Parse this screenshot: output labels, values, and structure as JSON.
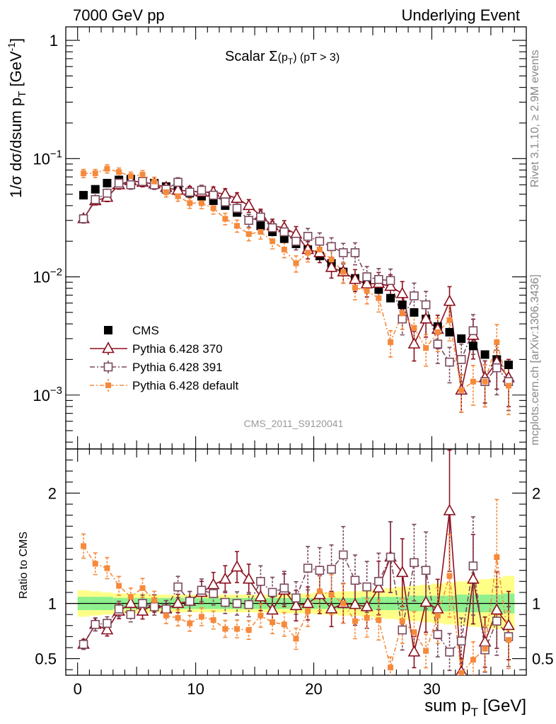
{
  "header": {
    "left": "7000 GeV pp",
    "right": "Underlying Event"
  },
  "side_text": {
    "top": "Rivet 3.1.10, ≥ 2.9M events",
    "bottom": "mcplots.cern.ch [arXiv:1306.3436]"
  },
  "watermark": "CMS_2011_S9120041",
  "colors": {
    "cms": "#000000",
    "p370": "#8b0f1e",
    "p391": "#7a4a5e",
    "pdef": "#f58a3c",
    "band_inner": "#8ef08e",
    "band_outer": "#ffff88"
  },
  "chart_data": [
    {
      "type": "scatter",
      "title_prefix": "Scalar ",
      "title_symbol": "Σ",
      "title_arg": "(p",
      "title_arg_sub": "T",
      "title_arg_close": ")",
      "title_cut": " (pT >  3)",
      "ylabel": "1/σ dσ/dsum p",
      "ylabel_sub": "T",
      "ylabel_unit": " [GeV",
      "ylabel_unit_sup": "-1",
      "ylabel_close": "]",
      "yscale": "log",
      "ylim": [
        0.00035,
        1.3
      ],
      "xlim": [
        -1,
        38
      ],
      "y_ticks": [
        {
          "value": 1,
          "base": "1",
          "exp": ""
        },
        {
          "value": 0.1,
          "base": "10",
          "exp": "−1"
        },
        {
          "value": 0.01,
          "base": "10",
          "exp": "−2"
        },
        {
          "value": 0.001,
          "base": "10",
          "exp": "−3"
        }
      ],
      "x": [
        0.5,
        1.5,
        2.5,
        3.5,
        4.5,
        5.5,
        6.5,
        7.5,
        8.5,
        9.5,
        10.5,
        11.5,
        12.5,
        13.5,
        14.5,
        15.5,
        16.5,
        17.5,
        18.5,
        19.5,
        20.5,
        21.5,
        22.5,
        23.5,
        24.5,
        25.5,
        26.5,
        27.5,
        28.5,
        29.5,
        30.5,
        31.5,
        32.5,
        33.5,
        34.5,
        35.5,
        36.5
      ],
      "legend": {
        "position": "bottom-left"
      },
      "series": [
        {
          "name": "CMS",
          "values": [
            0.049,
            0.055,
            0.062,
            0.066,
            0.067,
            0.064,
            0.062,
            0.058,
            0.055,
            0.051,
            0.048,
            0.044,
            0.04,
            0.035,
            0.03,
            0.027,
            0.024,
            0.021,
            0.019,
            0.017,
            0.015,
            0.013,
            0.011,
            0.0097,
            0.0087,
            0.0078,
            0.0066,
            0.0058,
            0.005,
            0.0044,
            0.0038,
            0.0034,
            0.003,
            0.0026,
            0.0022,
            0.002,
            0.0018
          ]
        },
        {
          "name": "Pythia 6.428 370",
          "values": [
            0.031,
            0.044,
            0.047,
            0.06,
            0.065,
            0.063,
            0.061,
            0.057,
            0.054,
            0.053,
            0.052,
            0.052,
            0.05,
            0.046,
            0.04,
            0.033,
            0.027,
            0.026,
            0.023,
            0.017,
            0.016,
            0.012,
            0.011,
            0.0095,
            0.0087,
            0.0088,
            0.0083,
            0.0072,
            0.0027,
            0.0044,
            0.0036,
            0.0062,
            0.0011,
            0.0032,
            0.0014,
            0.0019,
            0.0014
          ]
        },
        {
          "name": "Pythia 6.428 391",
          "values": [
            0.031,
            0.045,
            0.051,
            0.062,
            0.06,
            0.064,
            0.06,
            0.055,
            0.063,
            0.052,
            0.054,
            0.049,
            0.043,
            0.038,
            0.03,
            0.032,
            0.026,
            0.024,
            0.02,
            0.022,
            0.02,
            0.018,
            0.016,
            0.016,
            0.01,
            0.0095,
            0.0093,
            0.0044,
            0.0069,
            0.0058,
            0.0027,
            0.0019,
            0.002,
            0.0035,
            0.0013,
            0.0017,
            0.0013
          ]
        },
        {
          "name": "Pythia 6.428 default",
          "values": [
            0.075,
            0.075,
            0.082,
            0.077,
            0.071,
            0.073,
            0.064,
            0.052,
            0.048,
            0.042,
            0.042,
            0.038,
            0.031,
            0.027,
            0.023,
            0.024,
            0.02,
            0.017,
            0.013,
            0.016,
            0.017,
            0.014,
            0.011,
            0.0081,
            0.0076,
            0.0066,
            0.0028,
            0.0049,
            0.0037,
            0.0025,
            0.0034,
            0.0043,
            0.0011,
            0.0013,
            0.0013,
            0.0028,
            0.0012
          ]
        }
      ]
    },
    {
      "type": "scatter",
      "ylabel": "Ratio to CMS",
      "xlabel": "sum p",
      "xlabel_sub": "T",
      "xlabel_unit": " [GeV]",
      "ylim": [
        0.35,
        2.4
      ],
      "xlim": [
        -1,
        38
      ],
      "y_ticks": [
        0.5,
        1,
        2
      ],
      "x_ticks": [
        0,
        10,
        20,
        30
      ],
      "reference_line": 1,
      "x": [
        0.5,
        1.5,
        2.5,
        3.5,
        4.5,
        5.5,
        6.5,
        7.5,
        8.5,
        9.5,
        10.5,
        11.5,
        12.5,
        13.5,
        14.5,
        15.5,
        16.5,
        17.5,
        18.5,
        19.5,
        20.5,
        21.5,
        22.5,
        23.5,
        24.5,
        25.5,
        26.5,
        27.5,
        28.5,
        29.5,
        30.5,
        31.5,
        32.5,
        33.5,
        34.5,
        35.5,
        36.5
      ],
      "band_inner": [
        0.06,
        0.06,
        0.06,
        0.05,
        0.05,
        0.05,
        0.05,
        0.05,
        0.05,
        0.05,
        0.05,
        0.05,
        0.05,
        0.05,
        0.05,
        0.05,
        0.05,
        0.05,
        0.05,
        0.05,
        0.05,
        0.05,
        0.05,
        0.05,
        0.06,
        0.06,
        0.06,
        0.06,
        0.07,
        0.07,
        0.07,
        0.07,
        0.08,
        0.08,
        0.08,
        0.08,
        0.09
      ],
      "band_outer": [
        0.12,
        0.11,
        0.1,
        0.09,
        0.09,
        0.09,
        0.08,
        0.08,
        0.08,
        0.08,
        0.08,
        0.08,
        0.08,
        0.08,
        0.08,
        0.08,
        0.08,
        0.09,
        0.09,
        0.09,
        0.1,
        0.1,
        0.11,
        0.11,
        0.12,
        0.13,
        0.14,
        0.15,
        0.16,
        0.17,
        0.18,
        0.19,
        0.2,
        0.21,
        0.22,
        0.23,
        0.25
      ],
      "series": [
        {
          "name": "Pythia 6.428 370",
          "values": [
            0.63,
            0.81,
            0.76,
            0.93,
            1.0,
            0.93,
            1.0,
            0.95,
            1.0,
            1.02,
            1.1,
            1.17,
            1.22,
            1.33,
            1.22,
            1.06,
            0.94,
            1.12,
            0.98,
            1.0,
            1.08,
            0.95,
            1.0,
            0.99,
            0.97,
            1.14,
            1.42,
            1.28,
            0.56,
            1.01,
            0.95,
            1.84,
            0.38,
            1.22,
            0.65,
            0.94,
            0.8
          ]
        },
        {
          "name": "Pythia 6.428 391",
          "values": [
            0.63,
            0.81,
            0.82,
            0.95,
            0.9,
            1.0,
            0.97,
            0.95,
            1.15,
            1.02,
            1.12,
            1.09,
            1.01,
            1.0,
            0.99,
            1.2,
            1.1,
            1.14,
            1.05,
            1.32,
            1.3,
            1.31,
            1.44,
            1.21,
            1.15,
            1.2,
            1.42,
            0.76,
            1.37,
            1.3,
            0.72,
            0.56,
            0.66,
            1.34,
            0.58,
            0.84,
            0.7
          ]
        },
        {
          "name": "Pythia 6.428 default",
          "values": [
            1.52,
            1.36,
            1.32,
            1.16,
            1.06,
            1.14,
            1.03,
            0.89,
            0.87,
            0.82,
            0.88,
            0.85,
            0.77,
            0.77,
            0.76,
            0.89,
            0.83,
            0.81,
            0.68,
            0.93,
            1.11,
            1.08,
            1.0,
            0.84,
            0.87,
            0.85,
            0.42,
            0.84,
            0.74,
            0.57,
            0.89,
            1.25,
            0.37,
            0.49,
            0.59,
            1.42,
            0.67
          ]
        }
      ]
    }
  ]
}
